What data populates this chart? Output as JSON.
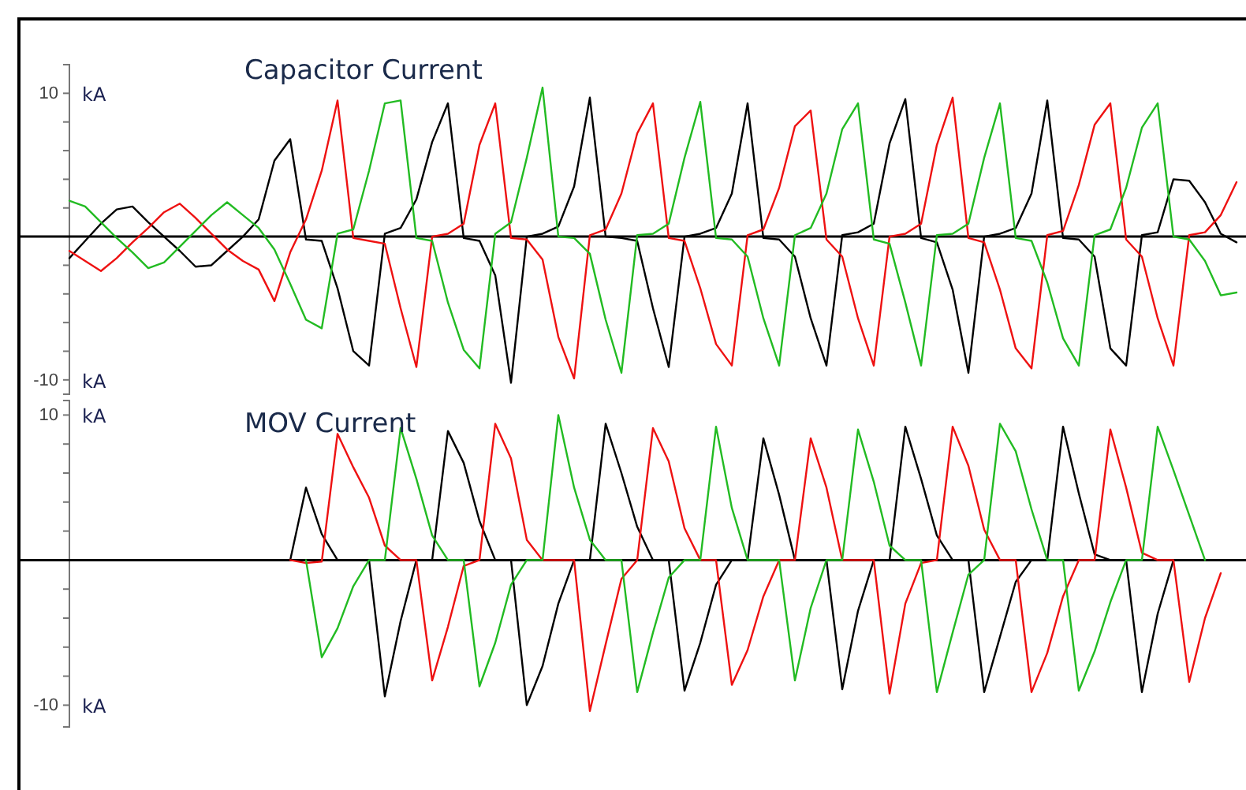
{
  "chart_data": [
    {
      "type": "line",
      "title": "Capacitor Current",
      "ylabel": "kA",
      "categories": [
        null,
        null,
        null,
        null,
        null,
        null,
        null,
        null,
        null,
        null,
        null,
        null,
        null,
        null,
        null,
        null,
        null,
        null,
        null,
        null,
        null,
        null,
        null,
        null,
        null,
        null,
        null,
        null,
        null,
        null,
        null,
        null,
        null,
        null,
        null,
        null,
        null,
        null,
        null,
        null,
        null,
        null,
        null,
        null,
        null,
        null,
        null,
        null,
        null,
        null,
        null,
        null,
        null,
        null,
        null,
        null,
        null,
        null,
        null,
        null,
        null,
        null,
        null,
        null,
        null,
        null,
        null,
        null,
        null,
        null,
        null,
        null,
        null,
        null,
        null
      ],
      "ylim": [
        -11,
        12
      ],
      "yticks": [
        {
          "value": 10,
          "label": "10"
        },
        {
          "value": 8,
          "label": null
        },
        {
          "value": 6,
          "label": null
        },
        {
          "value": 4,
          "label": null
        },
        {
          "value": 2,
          "label": null
        },
        {
          "value": 0,
          "label": null
        },
        {
          "value": -2,
          "label": null
        },
        {
          "value": -4,
          "label": null
        },
        {
          "value": -6,
          "label": null
        },
        {
          "value": -8,
          "label": null
        },
        {
          "value": -10,
          "label": "-10"
        }
      ],
      "tick_labels": "y",
      "line_style": "solid",
      "marker": "none",
      "series": [
        {
          "color": "#000000",
          "values": [
            -1.5,
            -0.3,
            0.9,
            1.9,
            2.1,
            1.0,
            0,
            -1.0,
            -2.1,
            -2.0,
            -1.0,
            0,
            1.2,
            5.3,
            6.8,
            -0.2,
            -0.3,
            -3.6,
            -8,
            -9,
            0.2,
            0.6,
            2.6,
            6.6,
            9.3,
            -0.1,
            -0.3,
            -2.7,
            -10.2,
            0,
            0.2,
            0.7,
            3.5,
            9.7,
            0,
            -0.1,
            -0.3,
            -5,
            -9.1,
            0,
            0.2,
            0.6,
            3,
            9.3,
            -0.1,
            -0.2,
            -1.4,
            -5.7,
            -9,
            0.1,
            0.3,
            0.9,
            6.5,
            9.6,
            -0.1,
            -0.4,
            -3.7,
            -9.5,
            0,
            0.2,
            0.6,
            3,
            9.5,
            -0.1,
            -0.2,
            -1.4,
            -7.8,
            -9,
            0.1,
            0.3,
            4,
            3.9,
            2.4,
            0.2,
            -0.4
          ]
        },
        {
          "color": "#ee1111",
          "values": [
            -1,
            -1.7,
            -2.4,
            -1.5,
            -0.4,
            0.6,
            1.7,
            2.3,
            1.3,
            0.2,
            -0.9,
            -1.7,
            -2.3,
            -4.5,
            -1.1,
            1.2,
            4.6,
            9.5,
            -0.1,
            -0.3,
            -0.5,
            -5,
            -9.1,
            0,
            0.2,
            0.9,
            6.4,
            9.3,
            -0.1,
            -0.2,
            -1.6,
            -7,
            -9.9,
            0.1,
            0.5,
            3,
            7.2,
            9.3,
            -0.1,
            -0.3,
            -3.6,
            -7.5,
            -9,
            0.1,
            0.5,
            3.4,
            7.7,
            8.8,
            -0.2,
            -1.4,
            -5.7,
            -9,
            0,
            0.2,
            0.9,
            6.4,
            9.7,
            -0.1,
            -0.4,
            -3.7,
            -7.8,
            -9.2,
            0.1,
            0.4,
            3.6,
            7.8,
            9.3,
            -0.2,
            -1.4,
            -5.7,
            -9,
            0.1,
            0.3,
            1.5,
            3.8
          ]
        },
        {
          "color": "#22bb22",
          "values": [
            2.5,
            2.1,
            1.0,
            -0.1,
            -1.1,
            -2.2,
            -1.8,
            -0.7,
            0.4,
            1.5,
            2.4,
            1.5,
            0.6,
            -0.9,
            -3.3,
            -5.8,
            -6.4,
            0.2,
            0.5,
            4.6,
            9.3,
            9.5,
            -0.1,
            -0.3,
            -4.6,
            -7.9,
            -9.2,
            0.2,
            1,
            5.5,
            10.4,
            0,
            -0.1,
            -1.2,
            -5.8,
            -9.5,
            0.1,
            0.2,
            0.9,
            5.5,
            9.4,
            -0.1,
            -0.2,
            -1.4,
            -5.7,
            -9,
            0.1,
            0.6,
            3,
            7.5,
            9.3,
            -0.2,
            -0.5,
            -4.6,
            -9,
            0.1,
            0.2,
            0.9,
            5.5,
            9.3,
            -0.1,
            -0.3,
            -3.2,
            -7.1,
            -9,
            0.1,
            0.5,
            3.4,
            7.6,
            9.3,
            0,
            -0.2,
            -1.7,
            -4.1,
            -3.9
          ]
        }
      ]
    },
    {
      "type": "line",
      "title": "MOV Current",
      "ylabel": "kA",
      "categories": [
        null,
        null,
        null,
        null,
        null,
        null,
        null,
        null,
        null,
        null,
        null,
        null,
        null,
        null,
        null,
        null,
        null,
        null,
        null,
        null,
        null,
        null,
        null,
        null,
        null,
        null,
        null,
        null,
        null,
        null,
        null,
        null,
        null,
        null,
        null,
        null,
        null,
        null,
        null,
        null,
        null,
        null,
        null,
        null,
        null,
        null,
        null,
        null,
        null,
        null,
        null,
        null,
        null,
        null,
        null,
        null,
        null,
        null,
        null,
        null,
        null,
        null,
        null,
        null,
        null,
        null,
        null,
        null,
        null,
        null,
        null,
        null,
        null,
        null,
        null
      ],
      "ylim": [
        -11.5,
        11
      ],
      "yticks": [
        {
          "value": 10,
          "label": "10"
        },
        {
          "value": 8,
          "label": null
        },
        {
          "value": 6,
          "label": null
        },
        {
          "value": 4,
          "label": null
        },
        {
          "value": 2,
          "label": null
        },
        {
          "value": 0,
          "label": null
        },
        {
          "value": -2,
          "label": null
        },
        {
          "value": -4,
          "label": null
        },
        {
          "value": -6,
          "label": null
        },
        {
          "value": -8,
          "label": null
        },
        {
          "value": -10,
          "label": "-10"
        }
      ],
      "tick_labels": "y",
      "line_style": "solid",
      "marker": "none",
      "series": [
        {
          "color": "#000000",
          "values": [
            null,
            null,
            null,
            null,
            null,
            null,
            null,
            null,
            null,
            null,
            null,
            null,
            null,
            null,
            0,
            5,
            1.8,
            0,
            0,
            0,
            -9.4,
            -4.2,
            0,
            0,
            8.9,
            6.7,
            2.7,
            0,
            0,
            -10,
            -7.3,
            -3,
            0,
            0,
            9.4,
            6,
            2.3,
            0,
            0,
            -9,
            -5.7,
            -1.7,
            0,
            0,
            8.4,
            4.5,
            0,
            0,
            0,
            -8.9,
            -3.5,
            0,
            0,
            9.2,
            5.6,
            1.7,
            0,
            0,
            -9.1,
            -5.3,
            -1.5,
            0,
            0,
            9.2,
            4.6,
            0.4,
            0,
            0,
            -9.1,
            -3.7,
            0,
            null,
            null,
            null,
            null
          ]
        },
        {
          "color": "#ee1111",
          "values": [
            null,
            null,
            null,
            null,
            null,
            null,
            null,
            null,
            null,
            null,
            null,
            null,
            null,
            null,
            0,
            -0.2,
            -0.1,
            8.7,
            6.4,
            4.3,
            1,
            0,
            0,
            -8.3,
            -4.6,
            -0.4,
            0,
            9.4,
            7,
            1.4,
            0,
            0,
            0,
            -10.4,
            -5.8,
            -1.3,
            0,
            9.1,
            6.8,
            2.2,
            0,
            0,
            -8.6,
            -6.2,
            -2.5,
            0,
            0,
            8.4,
            5,
            0,
            0,
            0,
            -9.2,
            -3,
            -0.2,
            0,
            9.2,
            6.5,
            2.1,
            0,
            0,
            -9.1,
            -6.4,
            -2.5,
            0,
            0,
            9,
            5,
            0.5,
            0,
            0,
            -8.4,
            -4,
            -0.9,
            null
          ]
        },
        {
          "color": "#22bb22",
          "values": [
            null,
            null,
            null,
            null,
            null,
            null,
            null,
            null,
            null,
            null,
            null,
            null,
            null,
            null,
            null,
            0,
            -6.7,
            -4.7,
            -1.8,
            0,
            0,
            9.1,
            5.6,
            1.7,
            0,
            0,
            -8.7,
            -5.7,
            -1.7,
            0,
            0,
            10,
            5,
            1.4,
            0,
            0,
            -9.1,
            -5,
            -1.2,
            0,
            0,
            9.2,
            3.6,
            0,
            0,
            0,
            -8.3,
            -3.3,
            0,
            0,
            9,
            5.4,
            1,
            0,
            0,
            -9.1,
            -5,
            -1,
            0,
            9.4,
            7.5,
            3.5,
            0,
            0,
            -9,
            -6.3,
            -2.9,
            0,
            0,
            9.2,
            6.2,
            3.1,
            0,
            null,
            null
          ]
        }
      ]
    }
  ]
}
